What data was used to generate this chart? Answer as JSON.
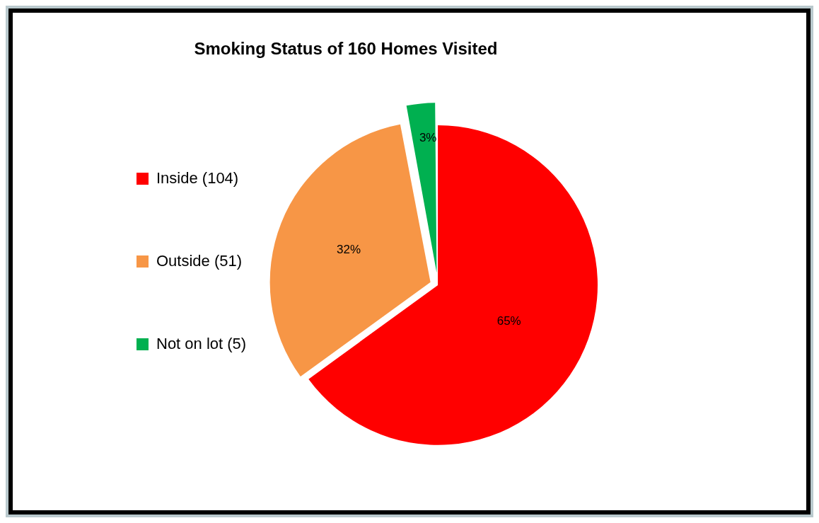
{
  "chart_data": {
    "type": "pie",
    "title": "Smoking Status of 160 Homes Visited",
    "categories": [
      "Inside (104)",
      "Outside (51)",
      "Not on lot (5)"
    ],
    "values": [
      65,
      32,
      3
    ],
    "value_labels": [
      "65%",
      "32%",
      "3%"
    ],
    "colors": [
      "#ff0000",
      "#f79646",
      "#00b050"
    ],
    "legend": "left"
  }
}
